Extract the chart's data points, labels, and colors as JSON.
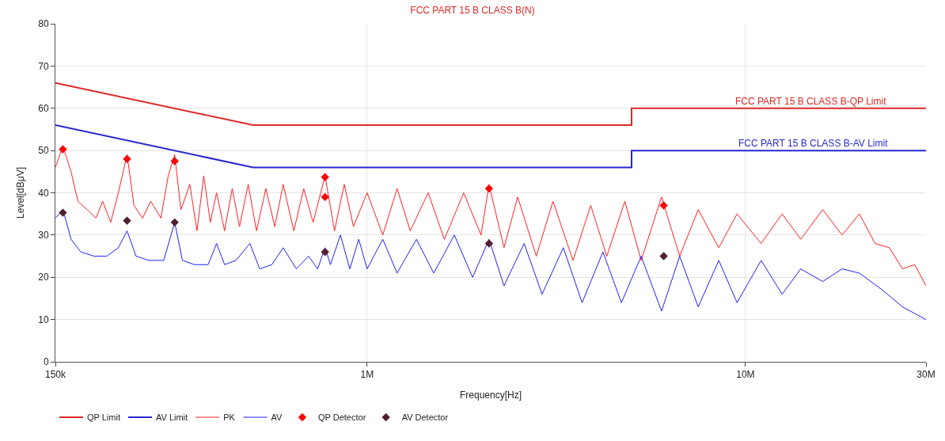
{
  "chart_data": {
    "type": "line",
    "title": "FCC PART 15 B CLASS B(N)",
    "xlabel": "Frequency[Hz]",
    "ylabel": "Level[dBμV]",
    "log": "x",
    "grid": true,
    "legend": "bottom",
    "xlim": [
      150000,
      30000000
    ],
    "xticks": [
      {
        "value": 150000,
        "label": "150k"
      },
      {
        "value": 1000000,
        "label": "1M"
      },
      {
        "value": 10000000,
        "label": "10M"
      },
      {
        "value": 30000000,
        "label": "30M"
      }
    ],
    "ylim": [
      0,
      80
    ],
    "yticks": [
      0,
      10,
      20,
      30,
      40,
      50,
      60,
      70,
      80
    ],
    "annotations": [
      {
        "text": "FCC PART 15 B CLASS B-QP Limit",
        "x": 9300000,
        "y": 60
      },
      {
        "text": "FCC PART 15 B CLASS B-AV Limit",
        "x": 9500000,
        "y": 50
      }
    ],
    "series": [
      {
        "name": "QP Limit",
        "color": "#e02828",
        "x": [
          150000,
          500000,
          5000000,
          5000000,
          30000000
        ],
        "values": [
          66,
          56,
          56,
          60,
          60
        ]
      },
      {
        "name": "AV Limit",
        "color": "#2828d0",
        "x": [
          150000,
          500000,
          5000000,
          5000000,
          30000000
        ],
        "values": [
          56,
          46,
          46,
          50,
          50
        ]
      },
      {
        "name": "PK",
        "color": "#ff2020",
        "x": [
          150000,
          157000,
          165000,
          172000,
          182000,
          192000,
          200000,
          210000,
          220000,
          232000,
          242000,
          255000,
          268000,
          285000,
          298000,
          310000,
          322000,
          340000,
          355000,
          370000,
          385000,
          400000,
          420000,
          440000,
          460000,
          485000,
          510000,
          540000,
          570000,
          600000,
          640000,
          680000,
          720000,
          774000,
          820000,
          870000,
          920000,
          1000000,
          1100000,
          1200000,
          1300000,
          1450000,
          1600000,
          1800000,
          2000000,
          2100000,
          2300000,
          2500000,
          2800000,
          3100000,
          3500000,
          3900000,
          4300000,
          4800000,
          5300000,
          6000000,
          6700000,
          7500000,
          8500000,
          9500000,
          11000000,
          12500000,
          14000000,
          16000000,
          18000000,
          20000000,
          22000000,
          24000000,
          26000000,
          28000000,
          30000000
        ],
        "values": [
          46,
          51,
          45,
          38,
          36,
          34,
          38,
          33,
          40,
          49,
          37,
          34,
          38,
          34,
          44,
          49,
          36,
          42,
          31,
          44,
          33,
          40,
          31,
          41,
          32,
          42,
          31,
          41,
          32,
          42,
          31,
          41,
          33,
          44,
          31,
          42,
          32,
          40,
          30,
          41,
          31,
          40,
          29,
          40,
          30,
          42,
          27,
          39,
          25,
          38,
          24,
          37,
          25,
          38,
          24,
          39,
          25,
          36,
          27,
          35,
          28,
          35,
          29,
          36,
          30,
          35,
          28,
          27,
          22,
          23,
          18
        ]
      },
      {
        "name": "AV",
        "color": "#2020ff",
        "x": [
          150000,
          157000,
          165000,
          175000,
          190000,
          205000,
          220000,
          232000,
          245000,
          265000,
          290000,
          310000,
          325000,
          350000,
          380000,
          400000,
          420000,
          450000,
          490000,
          520000,
          560000,
          600000,
          650000,
          700000,
          740000,
          774000,
          800000,
          850000,
          900000,
          950000,
          1000000,
          1100000,
          1200000,
          1350000,
          1500000,
          1700000,
          1900000,
          2100000,
          2300000,
          2600000,
          2900000,
          3300000,
          3700000,
          4200000,
          4700000,
          5300000,
          6000000,
          6700000,
          7500000,
          8500000,
          9500000,
          11000000,
          12500000,
          14000000,
          16000000,
          18000000,
          20000000,
          23000000,
          26000000,
          30000000
        ],
        "values": [
          34,
          36,
          29,
          26,
          25,
          25,
          27,
          31,
          25,
          24,
          24,
          33,
          24,
          23,
          23,
          28,
          23,
          24,
          28,
          22,
          23,
          27,
          22,
          25,
          22,
          27,
          23,
          30,
          22,
          29,
          22,
          29,
          21,
          29,
          21,
          30,
          20,
          29,
          18,
          28,
          16,
          27,
          14,
          26,
          14,
          25,
          12,
          25,
          13,
          24,
          14,
          24,
          16,
          22,
          19,
          22,
          21,
          17,
          13,
          10
        ]
      },
      {
        "name": "QP Detector",
        "type": "scatter",
        "marker": "diamond",
        "color": "#ff0000",
        "x": [
          157000,
          232000,
          310000,
          774000,
          774000,
          2100000,
          6080000
        ],
        "values": [
          50.3,
          48,
          47.5,
          43.7,
          39,
          41,
          37
        ]
      },
      {
        "name": "AV Detector",
        "type": "scatter",
        "marker": "diamond",
        "color": "#502030",
        "x": [
          157000,
          232000,
          310000,
          774000,
          2100000,
          6080000
        ],
        "values": [
          35.3,
          33.4,
          33,
          26,
          28,
          25
        ]
      }
    ]
  }
}
